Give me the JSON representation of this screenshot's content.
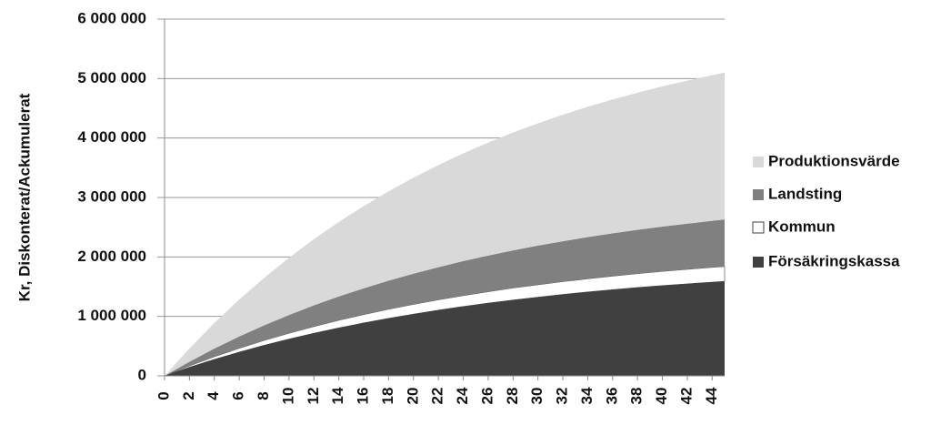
{
  "chart_data": {
    "type": "stacked-area",
    "y_label": "Kr, Diskonterat/Ackumulerat",
    "x": [
      0,
      2,
      4,
      6,
      8,
      10,
      12,
      14,
      16,
      18,
      20,
      22,
      24,
      26,
      28,
      30,
      32,
      34,
      36,
      38,
      40,
      42,
      44,
      45
    ],
    "xlim": [
      0,
      45
    ],
    "xticks": [
      0,
      2,
      4,
      6,
      8,
      10,
      12,
      14,
      16,
      18,
      20,
      22,
      24,
      26,
      28,
      30,
      32,
      34,
      36,
      38,
      40,
      42,
      44
    ],
    "ylim": [
      0,
      6000000
    ],
    "yticks": [
      0,
      {
        "value": 1000000,
        "label": "1 000 000"
      },
      {
        "value": 2000000,
        "label": "2 000 000"
      },
      {
        "value": 3000000,
        "label": "3 000 000"
      },
      {
        "value": 4000000,
        "label": "4 000 000"
      },
      {
        "value": 5000000,
        "label": "5 000 000"
      },
      {
        "value": 6000000,
        "label": "6 000 000"
      }
    ],
    "grid": true,
    "legend": "right",
    "series": [
      {
        "name": "Försäkringskassa",
        "color": "#404040",
        "values": [
          0,
          144000,
          277000,
          400000,
          514000,
          619000,
          717000,
          807000,
          890000,
          968000,
          1039000,
          1105000,
          1167000,
          1223000,
          1276000,
          1324000,
          1369000,
          1411000,
          1449000,
          1485000,
          1518000,
          1548000,
          1576000,
          1590000
        ]
      },
      {
        "name": "Kommun",
        "color": "#ffffff",
        "values": [
          0,
          23000,
          44000,
          63000,
          81000,
          97000,
          113000,
          127000,
          140000,
          152000,
          163000,
          174000,
          183000,
          192000,
          201000,
          208000,
          215000,
          222000,
          228000,
          233000,
          239000,
          243000,
          248000,
          250000
        ]
      },
      {
        "name": "Landsting",
        "color": "#808080",
        "values": [
          0,
          71000,
          138000,
          199000,
          255000,
          308000,
          356000,
          401000,
          442000,
          481000,
          516000,
          549000,
          580000,
          608000,
          634000,
          658000,
          680000,
          701000,
          720000,
          738000,
          754000,
          769000,
          783000,
          790000
        ]
      },
      {
        "name": "Produktionsvärde",
        "color": "#d9d9d9",
        "values": [
          0,
          223000,
          430000,
          621000,
          798000,
          962000,
          1113000,
          1254000,
          1383000,
          1503000,
          1614000,
          1717000,
          1812000,
          1900000,
          1982000,
          2058000,
          2127000,
          2192000,
          2251000,
          2307000,
          2358000,
          2405000,
          2449000,
          2470000
        ]
      }
    ]
  }
}
